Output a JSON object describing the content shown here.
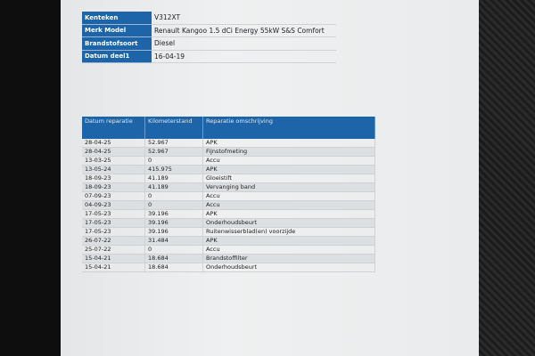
{
  "vehicle": [
    {
      "label": "Kenteken",
      "value": "V312XT"
    },
    {
      "label": "Merk Model",
      "value": "Renault Kangoo 1.5 dCi Energy 55kW S&S Comfort"
    },
    {
      "label": "Brandstofsoort",
      "value": "Diesel"
    },
    {
      "label": "Datum deel1",
      "value": "16-04-19"
    }
  ],
  "repairs": {
    "headers": [
      "Datum reparatie",
      "Kilometerstand",
      "Reparatie omschrijving"
    ],
    "rows": [
      [
        "28-04-25",
        "52.967",
        "APK"
      ],
      [
        "28-04-25",
        "52.967",
        "Fijnstofmeting"
      ],
      [
        "13-03-25",
        "0",
        "Accu"
      ],
      [
        "13-05-24",
        "415.975",
        "APK"
      ],
      [
        "18-09-23",
        "41.189",
        "Gloeistift"
      ],
      [
        "18-09-23",
        "41.189",
        "Vervanging band"
      ],
      [
        "07-09-23",
        "0",
        "Accu"
      ],
      [
        "04-09-23",
        "0",
        "Accu"
      ],
      [
        "17-05-23",
        "39.196",
        "APK"
      ],
      [
        "17-05-23",
        "39.196",
        "Onderhoudsbeurt"
      ],
      [
        "17-05-23",
        "39.196",
        "Ruitenwisserblad(en) voorzijde"
      ],
      [
        "26-07-22",
        "31.484",
        "APK"
      ],
      [
        "25-07-22",
        "0",
        "Accu"
      ],
      [
        "15-04-21",
        "18.684",
        "Brandstoffilter"
      ],
      [
        "15-04-21",
        "18.684",
        "Onderhoudsbeurt"
      ]
    ]
  },
  "colors": {
    "header_blue": "#1d64a8"
  }
}
